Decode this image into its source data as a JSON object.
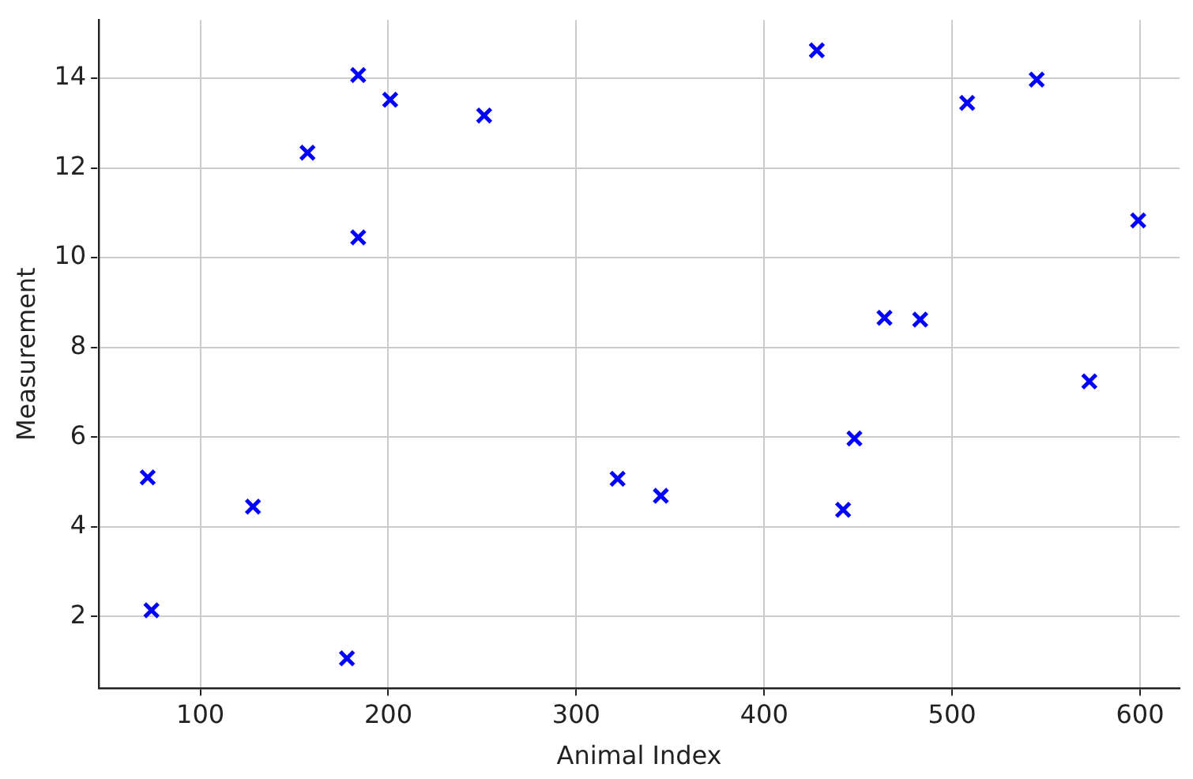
{
  "chart_data": {
    "type": "scatter",
    "xlabel": "Animal Index",
    "ylabel": "Measurement",
    "x": [
      72,
      74,
      128,
      157,
      178,
      184,
      184,
      201,
      251,
      322,
      345,
      428,
      442,
      448,
      464,
      483,
      508,
      545,
      573,
      599
    ],
    "series": [
      {
        "color": "#0000ff",
        "values": [
          5.1,
          2.14,
          4.45,
          12.34,
          1.07,
          14.07,
          10.45,
          13.52,
          13.17,
          5.07,
          4.69,
          14.62,
          4.38,
          5.97,
          8.66,
          8.62,
          13.45,
          13.97,
          7.24,
          10.83
        ]
      }
    ],
    "xlim": [
      46,
      621
    ],
    "ylim": [
      0.4,
      15.3
    ],
    "xticks": [
      100,
      200,
      300,
      400,
      500,
      600
    ],
    "yticks": [
      2,
      4,
      6,
      8,
      10,
      12,
      14
    ],
    "grid": true,
    "marker": "cross",
    "legend": false
  }
}
